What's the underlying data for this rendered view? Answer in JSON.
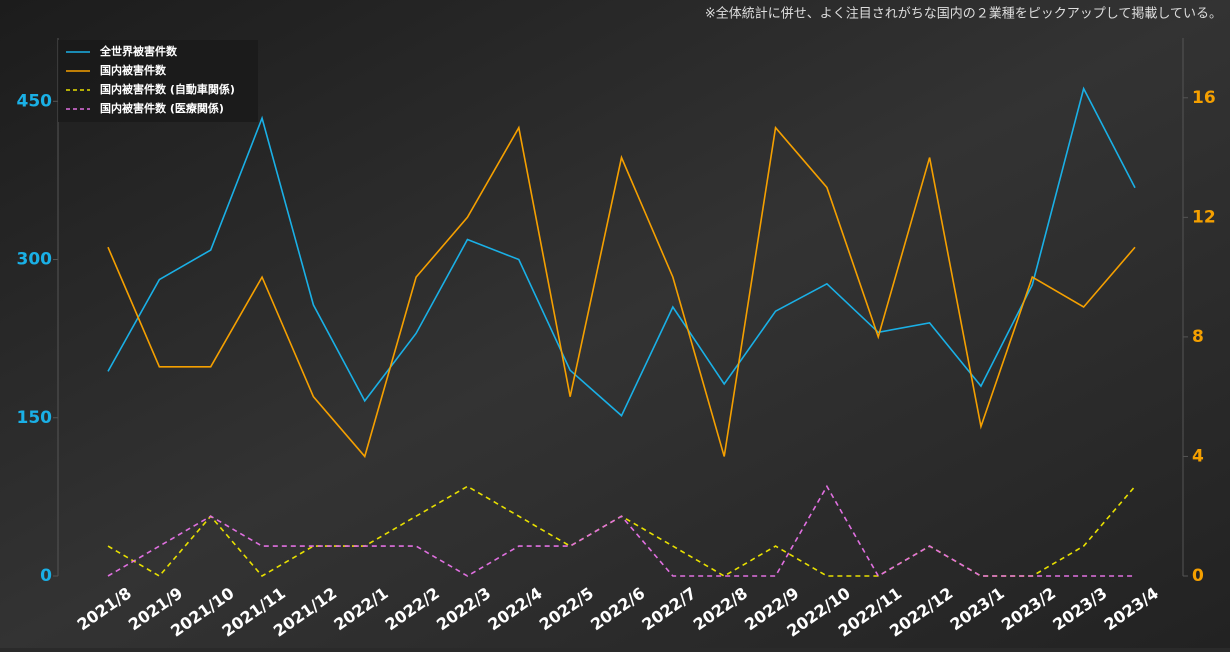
{
  "chart_data": {
    "type": "line",
    "annotation": "※全体統計に併せ、よく注目されがちな国内の２業種をピックアップして掲載している。",
    "categories": [
      "2021/8",
      "2021/9",
      "2021/10",
      "2021/11",
      "2021/12",
      "2022/1",
      "2022/2",
      "2022/3",
      "2022/4",
      "2022/5",
      "2022/6",
      "2022/7",
      "2022/8",
      "2022/9",
      "2022/10",
      "2022/11",
      "2022/12",
      "2023/1",
      "2023/2",
      "2023/3",
      "2023/4"
    ],
    "series": [
      {
        "name": "全世界被害件数",
        "color": "#1ab0e6",
        "axis": "y",
        "dashed": false,
        "values": [
          194,
          281,
          309,
          434,
          257,
          166,
          230,
          319,
          300,
          195,
          152,
          255,
          182,
          251,
          277,
          231,
          240,
          180,
          276,
          462,
          368
        ]
      },
      {
        "name": "国内被害件数",
        "color": "#f5a000",
        "axis": "y2",
        "dashed": false,
        "values": [
          11,
          7,
          7,
          10,
          6,
          4,
          10,
          12,
          15,
          6,
          14,
          10,
          4,
          15,
          13,
          8,
          14,
          5,
          10,
          9,
          11
        ]
      },
      {
        "name": "国内被害件数 (自動車関係)",
        "color": "#e8e000",
        "axis": "y2",
        "dashed": true,
        "values": [
          1,
          0,
          2,
          0,
          1,
          1,
          2,
          3,
          2,
          1,
          2,
          1,
          0,
          1,
          0,
          0,
          1,
          0,
          0,
          1,
          3
        ]
      },
      {
        "name": "国内被害件数 (医療関係)",
        "color": "#e070e0",
        "axis": "y2",
        "dashed": true,
        "values": [
          0,
          1,
          2,
          1,
          1,
          1,
          1,
          0,
          1,
          1,
          2,
          0,
          0,
          0,
          3,
          0,
          1,
          0,
          0,
          0,
          0
        ]
      }
    ],
    "ylim": [
      0,
      510
    ],
    "yticks": [
      0,
      150,
      300,
      450
    ],
    "ycolor": "#1ab0e6",
    "y2lim": [
      0,
      18
    ],
    "y2ticks": [
      0,
      4,
      8,
      12,
      16
    ],
    "y2color": "#f5a000",
    "legend": "upper left"
  }
}
